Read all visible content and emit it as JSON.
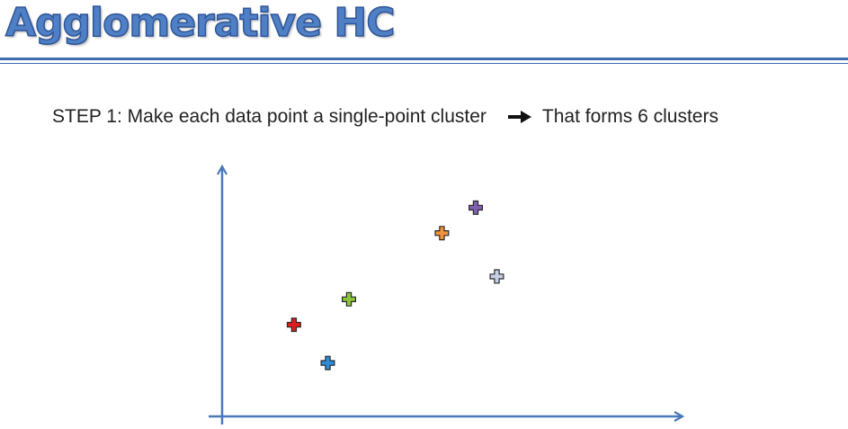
{
  "slide": {
    "title": "Agglomerative HC",
    "step_label": "STEP 1",
    "step_text": ": Make each data point a single-point cluster",
    "result_text": "That forms 6 clusters"
  },
  "colors": {
    "title_fill": "#4f7fc4",
    "accent": "#3e6db0",
    "axis": "#4a78b8"
  },
  "diagram": {
    "points": [
      {
        "id": "red",
        "color": "#e31a1c",
        "x": 0.17,
        "y": 0.36
      },
      {
        "id": "blue",
        "color": "#2b8cd8",
        "x": 0.25,
        "y": 0.21
      },
      {
        "id": "green",
        "color": "#8cc43c",
        "x": 0.3,
        "y": 0.46
      },
      {
        "id": "orange",
        "color": "#f0923a",
        "x": 0.52,
        "y": 0.72
      },
      {
        "id": "purple",
        "color": "#7f5fb0",
        "x": 0.6,
        "y": 0.82
      },
      {
        "id": "lavender",
        "color": "#c5cfe6",
        "x": 0.65,
        "y": 0.55
      }
    ]
  }
}
